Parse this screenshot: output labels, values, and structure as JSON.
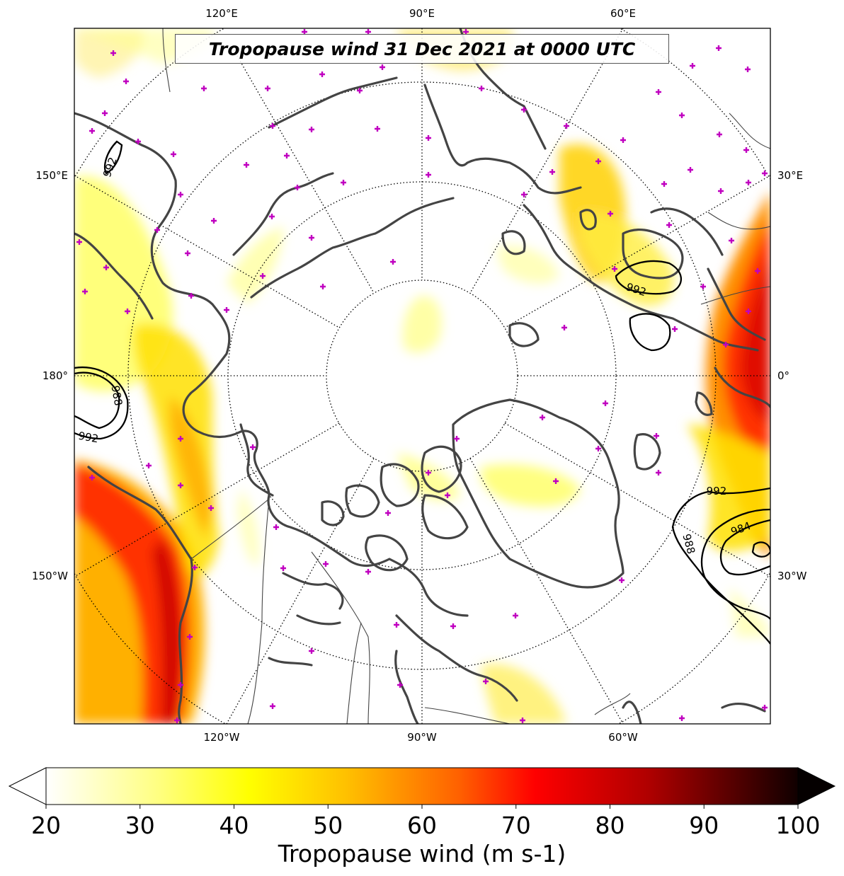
{
  "title": "Tropopause wind 31 Dec 2021 at 0000 UTC",
  "longitude_labels": {
    "top": [
      "120°E",
      "90°E",
      "60°E"
    ],
    "bottom": [
      "120°W",
      "90°W",
      "60°W"
    ],
    "left": [
      "150°E",
      "180°",
      "150°W"
    ],
    "right": [
      "30°E",
      "0°",
      "30°W"
    ]
  },
  "pressure_contours": [
    "992",
    "988",
    "992",
    "992",
    "992",
    "984",
    "988"
  ],
  "colorbar": {
    "label": "Tropopause wind (m s-1)",
    "ticks": [
      "20",
      "30",
      "40",
      "50",
      "60",
      "70",
      "80",
      "90",
      "100"
    ],
    "min": 20,
    "max": 100,
    "extend": "both",
    "colormap": "hot_r",
    "colors": [
      "#ffffff",
      "#ffff00",
      "#ffd400",
      "#ff8c00",
      "#ff0000",
      "#c00000",
      "#800000",
      "#200000"
    ]
  },
  "map": {
    "projection": "north-polar-stereographic",
    "contour_color": "#000000",
    "coast_color": "#444444",
    "station_marker_color": "#c000c0"
  }
}
